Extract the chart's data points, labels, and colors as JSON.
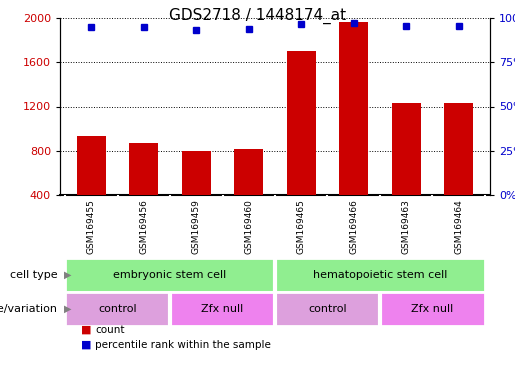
{
  "title": "GDS2718 / 1448174_at",
  "samples": [
    "GSM169455",
    "GSM169456",
    "GSM169459",
    "GSM169460",
    "GSM169465",
    "GSM169466",
    "GSM169463",
    "GSM169464"
  ],
  "counts": [
    930,
    870,
    800,
    820,
    1700,
    1960,
    1230,
    1230
  ],
  "percentiles": [
    95,
    95,
    93,
    94,
    96.5,
    97,
    95.5,
    95.5
  ],
  "ylim_left": [
    400,
    2000
  ],
  "ylim_right": [
    0,
    100
  ],
  "yticks_left": [
    400,
    800,
    1200,
    1600,
    2000
  ],
  "yticks_right": [
    0,
    25,
    50,
    75,
    100
  ],
  "bar_color": "#cc0000",
  "dot_color": "#0000cc",
  "bar_bottom": 400,
  "cell_type_color": "#90ee90",
  "control_color": "#dda0dd",
  "zfx_color": "#ee82ee",
  "tick_label_area_color": "#c8c8c8",
  "background_color": "#ffffff",
  "title_fontsize": 11,
  "tick_fontsize": 8,
  "label_fontsize": 8
}
